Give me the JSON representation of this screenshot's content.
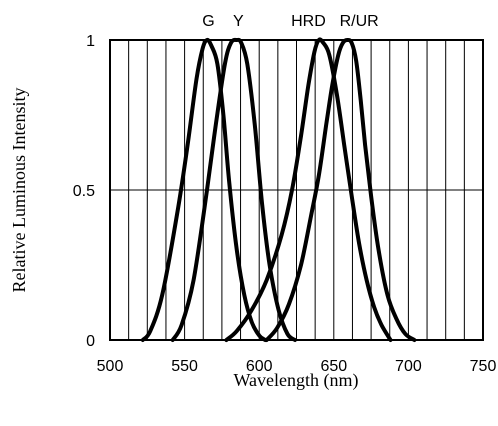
{
  "chart_data": {
    "type": "line",
    "title": "",
    "xlabel": "Wavelength (nm)",
    "ylabel": "Relative Luminous Intensity",
    "xlim": [
      500,
      750
    ],
    "ylim": [
      0,
      1
    ],
    "x_ticks": [
      "500",
      "550",
      "600",
      "650",
      "700",
      "750"
    ],
    "y_ticks": [
      "0",
      "0.5",
      "1"
    ],
    "grid": "vertical every 12.5 nm, horizontal at 0.5",
    "legend": "labels above peaks",
    "series": [
      {
        "name": "G",
        "color": "#000000",
        "points": [
          [
            522,
            0
          ],
          [
            527,
            0.03
          ],
          [
            535,
            0.15
          ],
          [
            545,
            0.42
          ],
          [
            552,
            0.65
          ],
          [
            558,
            0.87
          ],
          [
            562,
            0.97
          ],
          [
            565,
            1.0
          ],
          [
            568,
            0.98
          ],
          [
            572,
            0.92
          ],
          [
            576,
            0.75
          ],
          [
            580,
            0.52
          ],
          [
            585,
            0.3
          ],
          [
            590,
            0.15
          ],
          [
            595,
            0.06
          ],
          [
            600,
            0.015
          ],
          [
            604,
            0
          ]
        ]
      },
      {
        "name": "Y",
        "color": "#000000",
        "points": [
          [
            542,
            0
          ],
          [
            548,
            0.05
          ],
          [
            556,
            0.2
          ],
          [
            565,
            0.5
          ],
          [
            571,
            0.72
          ],
          [
            577,
            0.92
          ],
          [
            581,
            0.99
          ],
          [
            585,
            1.0
          ],
          [
            588,
            0.99
          ],
          [
            592,
            0.92
          ],
          [
            597,
            0.72
          ],
          [
            602,
            0.45
          ],
          [
            607,
            0.25
          ],
          [
            613,
            0.1
          ],
          [
            619,
            0.02
          ],
          [
            624,
            0
          ]
        ]
      },
      {
        "name": "HRD",
        "color": "#000000",
        "points": [
          [
            578,
            0
          ],
          [
            585,
            0.03
          ],
          [
            595,
            0.1
          ],
          [
            605,
            0.2
          ],
          [
            615,
            0.35
          ],
          [
            622,
            0.5
          ],
          [
            628,
            0.68
          ],
          [
            633,
            0.85
          ],
          [
            637,
            0.96
          ],
          [
            640,
            1.0
          ],
          [
            643,
            0.99
          ],
          [
            647,
            0.95
          ],
          [
            652,
            0.82
          ],
          [
            657,
            0.65
          ],
          [
            662,
            0.48
          ],
          [
            667,
            0.32
          ],
          [
            672,
            0.2
          ],
          [
            677,
            0.11
          ],
          [
            682,
            0.05
          ],
          [
            688,
            0
          ]
        ]
      },
      {
        "name": "R/UR",
        "color": "#000000",
        "points": [
          [
            605,
            0
          ],
          [
            612,
            0.04
          ],
          [
            620,
            0.12
          ],
          [
            628,
            0.25
          ],
          [
            635,
            0.42
          ],
          [
            640,
            0.55
          ],
          [
            645,
            0.72
          ],
          [
            649,
            0.85
          ],
          [
            653,
            0.95
          ],
          [
            656,
            0.99
          ],
          [
            659,
            1.0
          ],
          [
            662,
            0.99
          ],
          [
            665,
            0.93
          ],
          [
            668,
            0.8
          ],
          [
            671,
            0.65
          ],
          [
            675,
            0.48
          ],
          [
            680,
            0.3
          ],
          [
            686,
            0.15
          ],
          [
            692,
            0.07
          ],
          [
            698,
            0.02
          ],
          [
            704,
            0
          ]
        ]
      }
    ],
    "series_labels": [
      {
        "text": "G",
        "x": 566
      },
      {
        "text": "Y",
        "x": 586
      },
      {
        "text": "HRD",
        "x": 633
      },
      {
        "text": "R/UR",
        "x": 667
      }
    ]
  }
}
